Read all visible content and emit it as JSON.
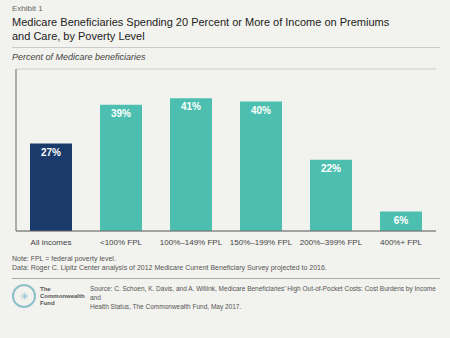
{
  "chart_data": {
    "type": "bar",
    "title": "Medicare Beneficiaries Spending 20 Percent or More of Income on Premiums\nand Care, by Poverty Level",
    "subtitle": "Percent of Medicare beneficiaries",
    "categories": [
      "All incomes",
      "<100% FPL",
      "100%–149% FPL",
      "150%–199% FPL",
      "200%–399% FPL",
      "400%+ FPL"
    ],
    "values": [
      27,
      39,
      41,
      40,
      22,
      6
    ],
    "value_labels": [
      "27%",
      "39%",
      "41%",
      "40%",
      "22%",
      "6%"
    ],
    "data_labels": true,
    "colors": [
      "#1a3a6b",
      "#4dbfb0",
      "#4dbfb0",
      "#4dbfb0",
      "#4dbfb0",
      "#4dbfb0"
    ],
    "ylim": [
      0,
      50
    ],
    "yticks": [
      0,
      10,
      20,
      30,
      40,
      50
    ],
    "grid": true,
    "tick_labels": "x",
    "annotations": [
      "Exhibit 1",
      "Note: FPL = federal poverty level.",
      "Data: Roger C. Lipitz Center analysis of 2012 Medicare Current Beneficiary Survey projected to 2016.",
      "Source: C. Schoen, K. Davis, and A. Willink, Medicare Beneficiaries’ High Out-of-Pocket Costs: Cost Burdens by Income and\nHealth Status, The Commonwealth Fund, May 2017.",
      "✳",
      "The",
      "Commonwealth",
      "Fund"
    ]
  }
}
